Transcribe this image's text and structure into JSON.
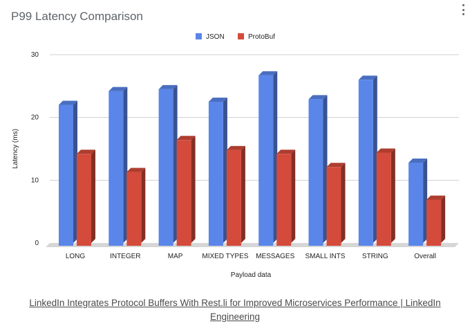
{
  "chart_card": {
    "title": "P99 Latency Comparison",
    "menu_icon": "more-vert-icon"
  },
  "chart_data": {
    "type": "bar",
    "title": "P99 Latency Comparison",
    "xlabel": "Payload data",
    "ylabel": "Latency (ms)",
    "ylim": [
      0,
      30
    ],
    "yticks": [
      "0",
      "10",
      "20",
      "30"
    ],
    "grid": true,
    "legend_position": "top",
    "categories": [
      "LONG",
      "INTEGER",
      "MAP",
      "MIXED TYPES",
      "MESSAGES",
      "SMALL INTS",
      "STRING",
      "Overall"
    ],
    "series": [
      {
        "name": "JSON",
        "color": "#5a86ea",
        "values": [
          22.0,
          24.2,
          24.5,
          22.5,
          26.7,
          22.9,
          26.0,
          12.8
        ]
      },
      {
        "name": "ProtoBuf",
        "color": "#d44b3b",
        "values": [
          14.2,
          11.3,
          16.4,
          14.8,
          14.2,
          12.1,
          14.4,
          6.9
        ]
      }
    ]
  },
  "caption": {
    "link_text": "LinkedIn Integrates Protocol Buffers With Rest.li for Improved Microservices Performance | LinkedIn Engineering"
  }
}
